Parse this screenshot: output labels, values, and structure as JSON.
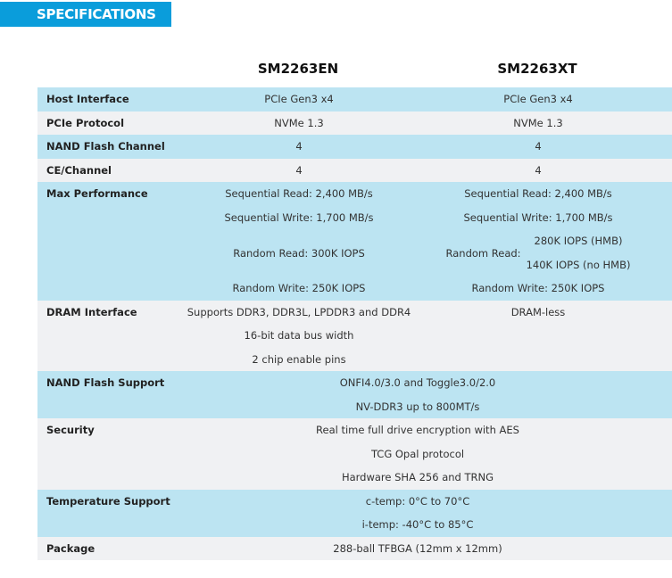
{
  "banner": "SPECIFICATIONS",
  "columns": [
    "SM2263EN",
    "SM2263XT"
  ],
  "rows": {
    "host": {
      "label": "Host Interface",
      "en": "PCIe Gen3 x4",
      "xt": "PCIe Gen3 x4"
    },
    "protocol": {
      "label": "PCIe Protocol",
      "en": "NVMe 1.3",
      "xt": "NVMe 1.3"
    },
    "channel": {
      "label": "NAND Flash Channel",
      "en": "4",
      "xt": "4"
    },
    "ce": {
      "label": "CE/Channel",
      "en": "4",
      "xt": "4"
    },
    "perf": {
      "label": "Max Performance",
      "en": [
        "Sequential Read: 2,400 MB/s",
        "Sequential Write: 1,700 MB/s",
        "Random Read: 300K IOPS",
        "Random Write: 250K IOPS"
      ],
      "xt": {
        "seq_read": "Sequential Read: 2,400 MB/s",
        "seq_write": "Sequential Write: 1,700 MB/s",
        "rr_label": "Random Read:",
        "rr_values": [
          "280K IOPS (HMB)",
          "140K IOPS (no HMB)"
        ],
        "rand_write": "Random Write: 250K IOPS"
      }
    },
    "dram": {
      "label": "DRAM Interface",
      "en": [
        "Supports DDR3, DDR3L, LPDDR3 and DDR4",
        "16-bit data bus width",
        "2 chip enable pins"
      ],
      "xt": "DRAM-less"
    },
    "nand_support": {
      "label": "NAND Flash Support",
      "values": [
        "ONFI4.0/3.0 and Toggle3.0/2.0",
        "NV-DDR3 up to 800MT/s"
      ]
    },
    "security": {
      "label": "Security",
      "values": [
        "Real time full drive encryption with AES",
        "TCG Opal protocol",
        "Hardware SHA 256 and TRNG"
      ]
    },
    "temperature": {
      "label": "Temperature Support",
      "values": [
        "c-temp: 0°C to 70°C",
        "i-temp: -40°C to 85°C"
      ]
    },
    "package": {
      "label": "Package",
      "values": [
        "288-ball TFBGA (12mm x 12mm)"
      ]
    }
  }
}
